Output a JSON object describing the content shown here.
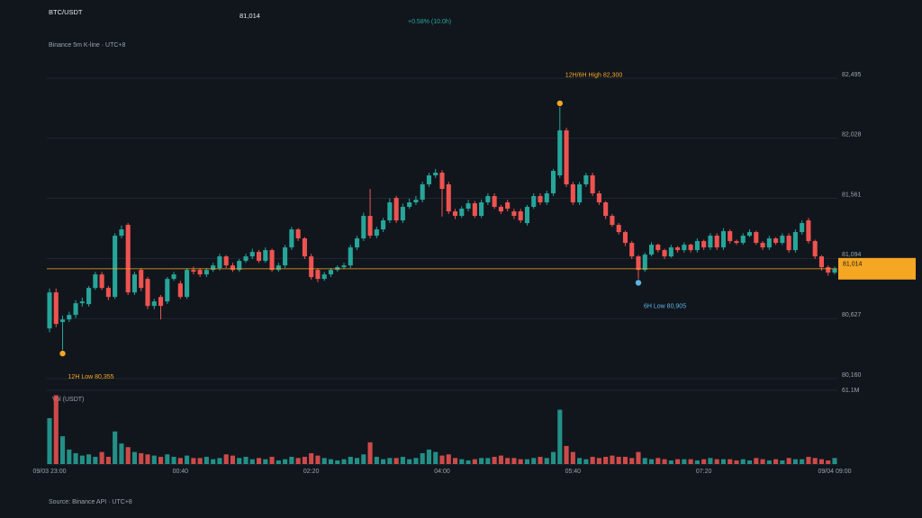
{
  "chart_data": {
    "type": "candlestick",
    "title": "BTC/USDT",
    "last_price": {
      "value": 81014,
      "label": "81,014"
    },
    "change": "+0.58% (10.0h)",
    "subtitle": "Binance 5m K-line · UTC+8",
    "source": "Source: Binance API · UTC+8",
    "volume_title": "Vol (USDT)",
    "up_color": "#26a69a",
    "down_color": "#ef5350",
    "last_price_color": "#f5a623",
    "grid": true,
    "categories": [
      "09/03 23:00",
      null,
      null,
      null,
      null,
      null,
      null,
      null,
      null,
      null,
      null,
      null,
      null,
      null,
      null,
      null,
      null,
      null,
      null,
      null,
      "00:40",
      null,
      null,
      null,
      null,
      null,
      null,
      null,
      null,
      null,
      null,
      null,
      null,
      null,
      null,
      null,
      null,
      null,
      null,
      null,
      "02:20",
      null,
      null,
      null,
      null,
      null,
      null,
      null,
      null,
      null,
      null,
      null,
      null,
      null,
      null,
      null,
      null,
      null,
      null,
      null,
      "04:00",
      null,
      null,
      null,
      null,
      null,
      null,
      null,
      null,
      null,
      null,
      null,
      null,
      null,
      null,
      null,
      null,
      null,
      null,
      null,
      "05:40",
      null,
      null,
      null,
      null,
      null,
      null,
      null,
      null,
      null,
      null,
      null,
      null,
      null,
      null,
      null,
      null,
      null,
      null,
      null,
      "07:20",
      null,
      null,
      null,
      null,
      null,
      null,
      null,
      null,
      null,
      null,
      null,
      null,
      null,
      null,
      null,
      null,
      null,
      null,
      null,
      "09/04 09:00"
    ],
    "open": [
      80550,
      80830,
      80600,
      80620,
      80655,
      80746,
      80739,
      80865,
      80970,
      80865,
      80795,
      81271,
      81355,
      80830,
      81005,
      80935,
      80725,
      80795,
      80760,
      80935,
      80900,
      80795,
      81005,
      81005,
      80970,
      81005,
      81019,
      81110,
      81040,
      81005,
      81075,
      81110,
      81145,
      81075,
      81159,
      81005,
      81040,
      81180,
      81320,
      81250,
      81110,
      81005,
      80935,
      80970,
      81005,
      81026,
      81040,
      81180,
      81250,
      81425,
      81271,
      81320,
      81390,
      81565,
      81390,
      81495,
      81530,
      81551,
      81670,
      81740,
      81761,
      81670,
      81460,
      81425,
      81481,
      81523,
      81425,
      81530,
      81579,
      81495,
      81530,
      81460,
      81460,
      81369,
      81495,
      81579,
      81530,
      81600,
      81740,
      82090,
      81670,
      81530,
      81670,
      81740,
      81600,
      81530,
      81425,
      81355,
      81299,
      81215,
      81110,
      81005,
      81124,
      81201,
      81159,
      81110,
      81180,
      81159,
      81201,
      81159,
      81229,
      81180,
      81271,
      81180,
      81306,
      81229,
      81215,
      81271,
      81299,
      81215,
      81180,
      81250,
      81215,
      81271,
      81159,
      81299,
      81390,
      81229,
      81110,
      81026,
      80984
    ],
    "high": [
      80860,
      80860,
      80650,
      80680,
      80770,
      80790,
      80880,
      80990,
      80990,
      80880,
      81290,
      81350,
      81370,
      80990,
      81020,
      80950,
      80780,
      80810,
      80950,
      80990,
      80920,
      81020,
      81030,
      81020,
      81020,
      81060,
      81130,
      81120,
      81060,
      81090,
      81130,
      81170,
      81160,
      81180,
      81170,
      81060,
      81200,
      81340,
      81330,
      81260,
      81130,
      81020,
      80990,
      81020,
      81040,
      81060,
      81200,
      81270,
      81450,
      81635,
      81340,
      81410,
      81560,
      81580,
      81520,
      81560,
      81580,
      81690,
      81760,
      81790,
      81780,
      81690,
      81480,
      81500,
      81550,
      81540,
      81550,
      81600,
      81600,
      81510,
      81550,
      81480,
      81480,
      81510,
      81600,
      81600,
      81620,
      81790,
      82300,
      82110,
      81690,
      81690,
      81760,
      81760,
      81620,
      81540,
      81440,
      81370,
      81310,
      81230,
      81120,
      81140,
      81220,
      81210,
      81170,
      81200,
      81190,
      81220,
      81210,
      81250,
      81240,
      81290,
      81290,
      81330,
      81320,
      81240,
      81290,
      81320,
      81310,
      81230,
      81270,
      81260,
      81290,
      81290,
      81320,
      81390,
      81410,
      81240,
      81120,
      81040,
      81030
    ],
    "low": [
      80520,
      80560,
      80355,
      80600,
      80630,
      80720,
      80720,
      80850,
      80850,
      80770,
      80780,
      81250,
      80810,
      80810,
      80840,
      80700,
      80700,
      80620,
      80740,
      80920,
      80780,
      80780,
      80970,
      80950,
      80950,
      80990,
      81000,
      81020,
      80990,
      80990,
      81060,
      81090,
      81060,
      81060,
      80990,
      80990,
      81020,
      81160,
      81230,
      81090,
      80930,
      80910,
      80920,
      80950,
      80990,
      81010,
      81020,
      81160,
      81230,
      81250,
      81250,
      81300,
      81370,
      81370,
      81370,
      81480,
      81510,
      81530,
      81650,
      81720,
      81420,
      81440,
      81400,
      81410,
      81460,
      81410,
      81410,
      81510,
      81480,
      81440,
      81460,
      81400,
      81370,
      81350,
      81480,
      81510,
      81510,
      81580,
      81720,
      81650,
      81510,
      81510,
      81650,
      81580,
      81510,
      81400,
      81340,
      81280,
      81190,
      81090,
      80905,
      80990,
      81110,
      81140,
      81090,
      81100,
      81140,
      81140,
      81140,
      81140,
      81160,
      81160,
      81160,
      81160,
      81210,
      81200,
      81200,
      81260,
      81200,
      81160,
      81160,
      81200,
      81200,
      81140,
      81140,
      81280,
      81210,
      81090,
      81000,
      80960,
      80970
    ],
    "close": [
      80830,
      80585,
      80620,
      80655,
      80746,
      80760,
      80865,
      80970,
      80865,
      80795,
      81271,
      81320,
      80830,
      80970,
      80865,
      80725,
      80760,
      80725,
      80935,
      80970,
      80795,
      81005,
      80991,
      80970,
      81005,
      81040,
      81110,
      81040,
      81005,
      81075,
      81110,
      81145,
      81075,
      81159,
      81005,
      81040,
      81180,
      81320,
      81250,
      81110,
      80949,
      80935,
      80970,
      81005,
      81026,
      81040,
      81180,
      81250,
      81425,
      81271,
      81320,
      81390,
      81530,
      81390,
      81495,
      81530,
      81551,
      81670,
      81740,
      81761,
      81635,
      81460,
      81425,
      81481,
      81523,
      81425,
      81530,
      81579,
      81495,
      81460,
      81481,
      81425,
      81390,
      81495,
      81579,
      81530,
      81600,
      81775,
      82090,
      81670,
      81530,
      81670,
      81740,
      81600,
      81530,
      81425,
      81355,
      81299,
      81215,
      81110,
      81005,
      81124,
      81201,
      81159,
      81110,
      81180,
      81159,
      81201,
      81159,
      81229,
      81180,
      81271,
      81180,
      81306,
      81229,
      81215,
      81271,
      81299,
      81215,
      81180,
      81250,
      81215,
      81271,
      81159,
      81299,
      81369,
      81229,
      81110,
      81026,
      80984,
      81014
    ],
    "volume": [
      38,
      57,
      23,
      12,
      9,
      7,
      8,
      6,
      10,
      6,
      27,
      17,
      14,
      10,
      9,
      8,
      7,
      6,
      8,
      6,
      5,
      7,
      5,
      5,
      6,
      4,
      5,
      8,
      7,
      5,
      6,
      4,
      5,
      4,
      6,
      3,
      4,
      6,
      5,
      6,
      9,
      7,
      5,
      4,
      3,
      4,
      6,
      5,
      8,
      18,
      6,
      4,
      5,
      5,
      6,
      4,
      5,
      9,
      12,
      10,
      7,
      8,
      5,
      4,
      3,
      4,
      5,
      5,
      6,
      7,
      5,
      5,
      4,
      4,
      5,
      6,
      5,
      10,
      45,
      15,
      10,
      5,
      4,
      6,
      5,
      6,
      7,
      6,
      6,
      5,
      10,
      5,
      4,
      5,
      4,
      3,
      4,
      4,
      4,
      3,
      4,
      5,
      4,
      4,
      4,
      3,
      4,
      3,
      5,
      4,
      3,
      4,
      3,
      5,
      4,
      4,
      6,
      5,
      4,
      3,
      5
    ],
    "ylim": [
      80160,
      82495
    ],
    "yticks": [
      {
        "value": 80160,
        "label": "80,160"
      },
      {
        "value": 80627,
        "label": "80,627"
      },
      {
        "value": 81094,
        "label": "81,094"
      },
      {
        "value": 81561,
        "label": "81,561"
      },
      {
        "value": 82028,
        "label": "82,028"
      },
      {
        "value": 82495,
        "label": "82,495"
      }
    ],
    "volume_ylim": [
      0,
      61.1
    ],
    "volume_yticks": [
      {
        "value": 61.1,
        "label": "61.1M"
      }
    ],
    "annotations": [
      {
        "text": "12H/6H High 82,300",
        "value": 82300,
        "kind": "high",
        "color": "#f5a623"
      },
      {
        "text": "12H Low 80,355",
        "value": 80355,
        "kind": "low",
        "color": "#f5a623"
      },
      {
        "text": "6H Low 80,905",
        "value": 80905,
        "kind": "low",
        "color": "#5ab4e6"
      }
    ]
  }
}
